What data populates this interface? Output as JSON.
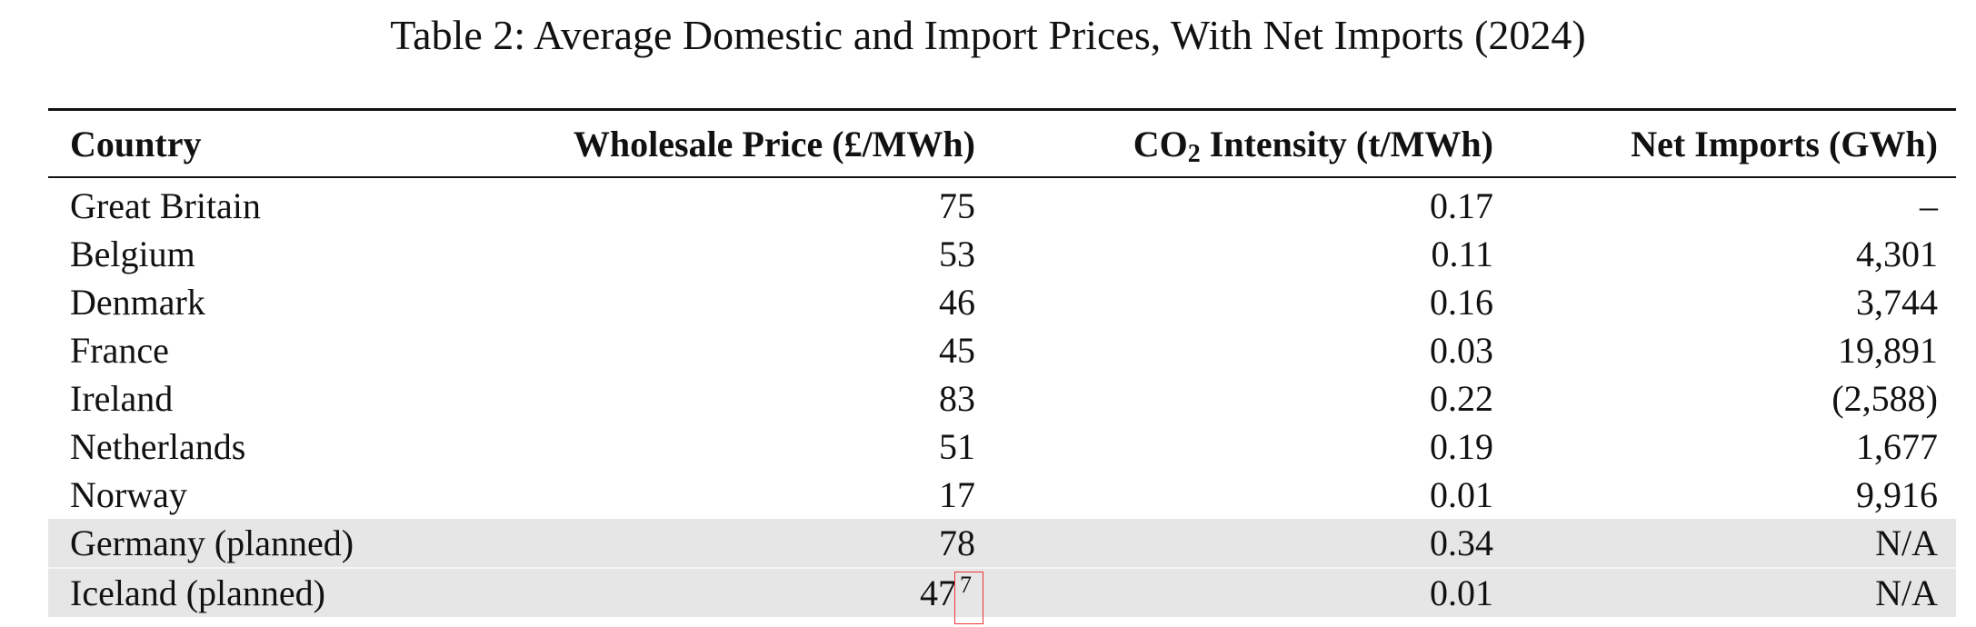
{
  "title": "Table 2:  Average Domestic and Import Prices, With Net Imports (2024)",
  "table": {
    "header": [
      "Country",
      "Wholesale Price (£/MWh)",
      {
        "text": "CO",
        "subscript": "2",
        "rest": " Intensity (t/MWh)"
      },
      "Net Imports (GWh)"
    ],
    "rows": [
      [
        "Great Britain",
        "75",
        "0.17",
        "–"
      ],
      [
        "Belgium",
        "53",
        "0.11",
        "4,301"
      ],
      [
        "Denmark",
        "46",
        "0.16",
        "3,744"
      ],
      [
        "France",
        "45",
        "0.03",
        "19,891"
      ],
      [
        "Ireland",
        "83",
        "0.22",
        "(2,588)"
      ],
      [
        "Netherlands",
        "51",
        "0.19",
        "1,677"
      ],
      [
        "Norway",
        "17",
        "0.01",
        "9,916"
      ],
      [
        "Germany (planned)",
        "78",
        "0.34",
        "N/A"
      ],
      [
        "Iceland (planned)",
        {
          "text": "47",
          "footnote": "7"
        },
        "0.01",
        "N/A"
      ]
    ]
  }
}
